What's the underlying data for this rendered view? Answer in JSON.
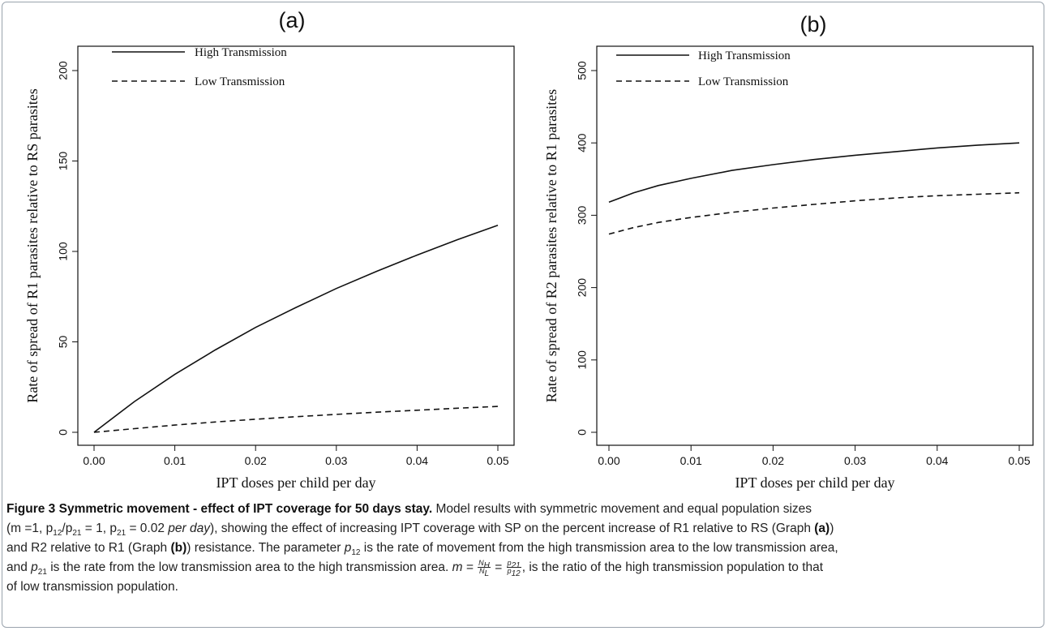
{
  "figure": {
    "caption": {
      "label": "Figure 3",
      "title": "Symmetric movement - effect of IPT coverage for 50 days stay.",
      "s1": "Model results with symmetric movement and equal population sizes",
      "s2a": "(m =1, p",
      "s2b": "/p",
      "s2c": " = 1, p",
      "s2d": " = 0.02 ",
      "s2e": "per day",
      "s2f": "), showing the effect of increasing IPT coverage with SP on the percent increase of R1 relative to RS (Graph ",
      "s2g": ")",
      "s3a": "and R2 relative to R1 (Graph ",
      "s3b": ") resistance. The parameter ",
      "s3c": " is the rate of movement from the high transmission area to the low transmission area,",
      "s4a": "and ",
      "s4b": " is the rate from the low transmission area to the high transmission area. ",
      "s4c": " is the ratio of the high transmission population to that",
      "s5": "of low transmission population.",
      "sub12": "12",
      "sub21": "21",
      "p": "p",
      "m_eq": "m = ",
      "eq": " = ",
      "NH_num": "N",
      "NH_sub": "H",
      "NL_den": "N",
      "NL_sub": "L",
      "comma": ",",
      "graph_a": "(a)",
      "graph_b": "(b)"
    }
  },
  "chart_data": [
    {
      "type": "line",
      "panel_label": "(a)",
      "xlabel": "IPT doses per child per day",
      "ylabel": "Rate of spread of R1 parasites relative to RS parasites",
      "xlim": [
        0,
        0.05
      ],
      "ylim": [
        0,
        200
      ],
      "xticks": [
        "0.00",
        "0.01",
        "0.02",
        "0.03",
        "0.04",
        "0.05"
      ],
      "yticks": [
        "0",
        "50",
        "100",
        "150",
        "200"
      ],
      "legend_position": "top-left",
      "grid": false,
      "x": [
        0,
        0.005,
        0.01,
        0.015,
        0.02,
        0.025,
        0.03,
        0.035,
        0.04,
        0.045,
        0.05
      ],
      "series": [
        {
          "name": "High Transmission",
          "style": "solid",
          "values": [
            0,
            17,
            32,
            45.5,
            58,
            69,
            79.5,
            89,
            98,
            106.5,
            114.5
          ]
        },
        {
          "name": "Low Transmission",
          "style": "dashed",
          "values": [
            0,
            2,
            4,
            5.7,
            7.2,
            8.6,
            9.9,
            11.1,
            12.2,
            13.3,
            14.3
          ]
        }
      ]
    },
    {
      "type": "line",
      "panel_label": "(b)",
      "xlabel": "IPT doses per child per day",
      "ylabel": "Rate of spread of R2 parasites relative to R1 parasites",
      "xlim": [
        0,
        0.05
      ],
      "ylim": [
        0,
        500
      ],
      "xticks": [
        "0.00",
        "0.01",
        "0.02",
        "0.03",
        "0.04",
        "0.05"
      ],
      "yticks": [
        "0",
        "100",
        "200",
        "300",
        "400",
        "500"
      ],
      "legend_position": "top-left",
      "grid": false,
      "x": [
        0,
        0.003,
        0.006,
        0.01,
        0.015,
        0.02,
        0.025,
        0.03,
        0.035,
        0.04,
        0.045,
        0.05
      ],
      "series": [
        {
          "name": "High Transmission",
          "style": "solid",
          "values": [
            318,
            331,
            341,
            351,
            362,
            370,
            377,
            383,
            388,
            393,
            397,
            400
          ]
        },
        {
          "name": "Low Transmission",
          "style": "dashed",
          "values": [
            274,
            283,
            290,
            297,
            304,
            310,
            315,
            320,
            324,
            327,
            329,
            331
          ]
        }
      ]
    }
  ]
}
